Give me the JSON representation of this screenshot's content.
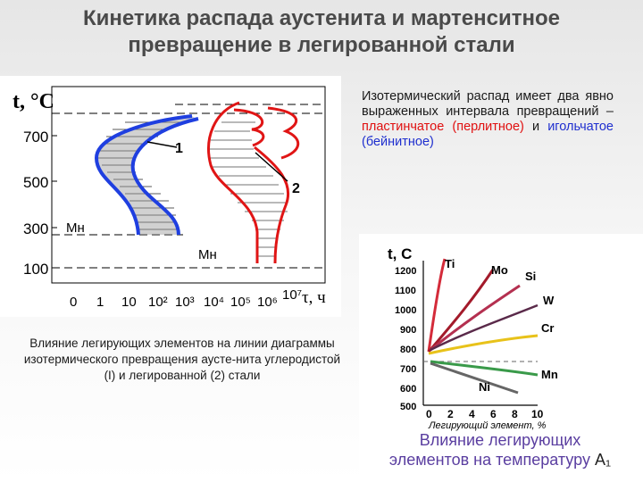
{
  "slide": {
    "title_line1": "Кинетика распада аустенита и  мартенситное",
    "title_line2": "превращение в легированной стали"
  },
  "description": {
    "part1": "Изотермический распад имеет два явно выраженных интервала превращений –",
    "part2_red": "пластинчатое (перлитное)",
    "part3": " и ",
    "part4_blue": "игольчатое (бейнитное)"
  },
  "diagram1": {
    "y_axis_label": "t, °С",
    "y_ticks": [
      "700",
      "500",
      "300",
      "100"
    ],
    "x_ticks": [
      "0",
      "1",
      "10",
      "10²",
      "10³",
      "10⁴",
      "10⁵",
      "10⁶",
      "10⁷"
    ],
    "x_axis_label": "τ, ч",
    "curve_labels": [
      "1",
      "2"
    ],
    "ms_label_1": "Мн",
    "ms_label_2": "Мн",
    "colors": {
      "curve1": "#1f3fe0",
      "curve2": "#e01515"
    },
    "caption": "Влияние легирующих элементов на линии диаграммы изотермического превращения аусте-нита углеродистой (I) и легированной (2) стали"
  },
  "diagram2": {
    "y_axis_label": "t, С",
    "y_ticks": [
      "1200",
      "1100",
      "1000",
      "900",
      "800",
      "700",
      "600",
      "500"
    ],
    "x_ticks": [
      "0",
      "2",
      "4",
      "6",
      "8",
      "10"
    ],
    "x_axis_label": "Легирующий элемент, %",
    "series_labels": [
      "Ti",
      "Mo",
      "Si",
      "W",
      "Cr",
      "Mn",
      "Ni"
    ],
    "colors": {
      "Ti": "#d42b3a",
      "Mo": "#a31a2a",
      "Si": "#b43050",
      "W": "#5a2a4a",
      "Cr": "#e8c21a",
      "Mn": "#3a9a4a",
      "Ni": "#666666"
    },
    "caption_line1": "Влияние легирующих",
    "caption_line2": "элементов на температуру",
    "caption_tail": "A₁"
  }
}
